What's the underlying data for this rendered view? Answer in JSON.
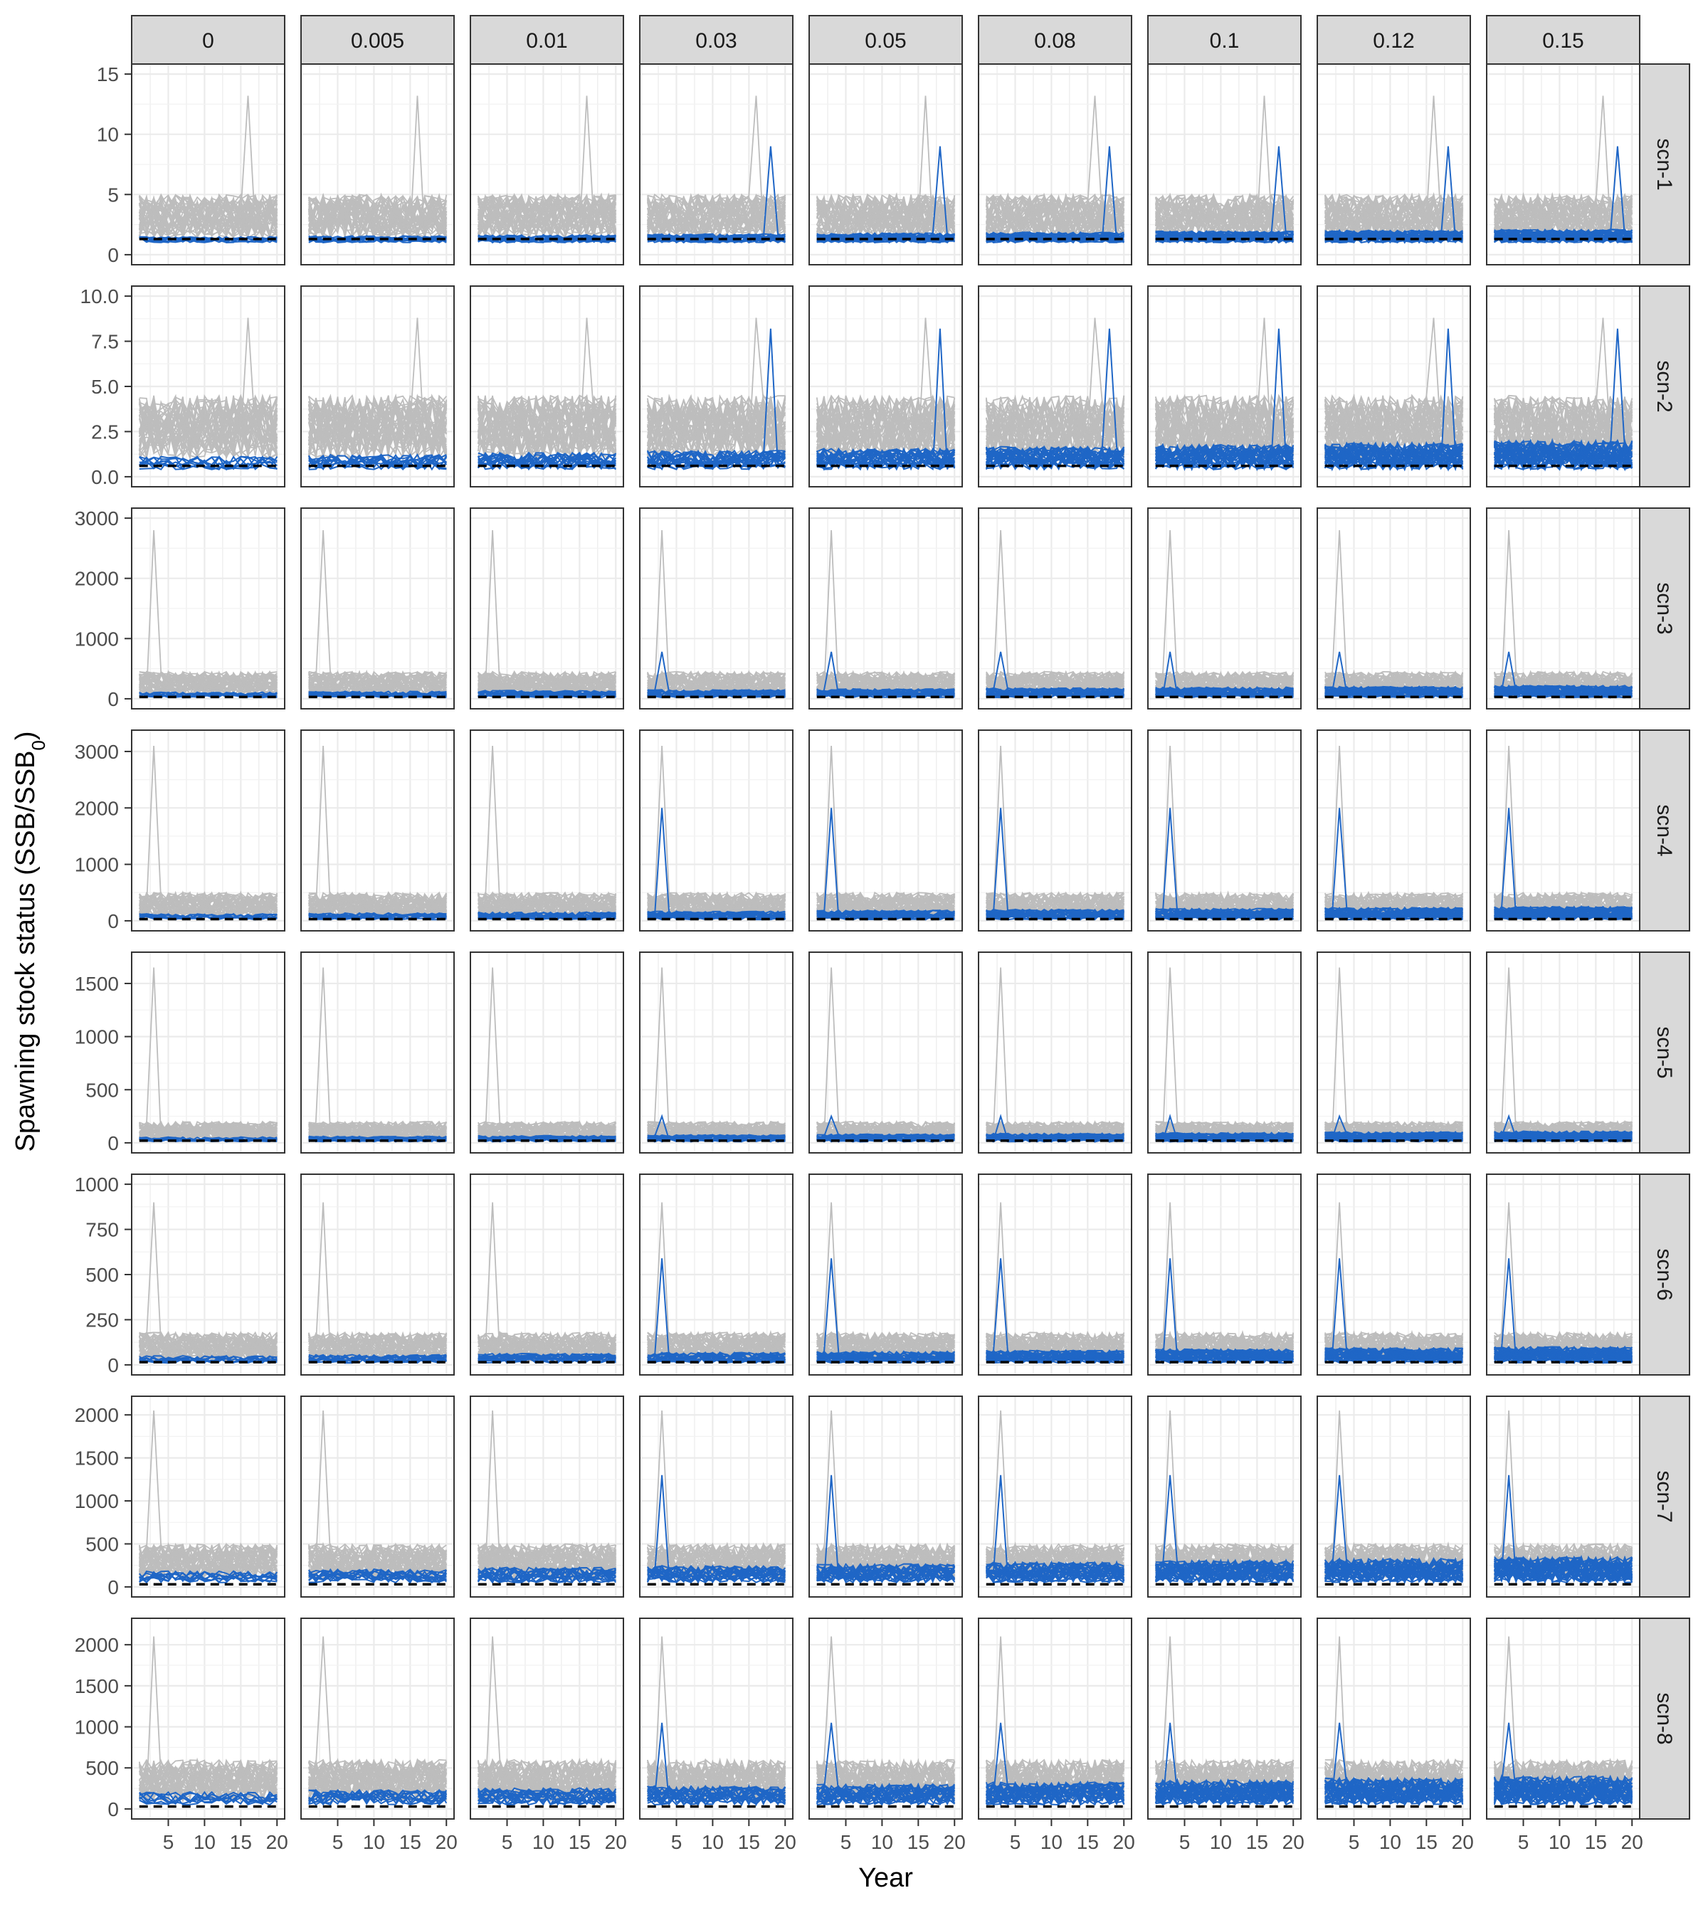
{
  "chart_data": {
    "type": "line",
    "xlabel": "Year",
    "ylabel": "Spawning stock status (SSB/SSB",
    "ylabel_subscript": "0",
    "ylabel_suffix": ")",
    "x_range": [
      1,
      20
    ],
    "x_ticks": [
      5,
      10,
      15,
      20
    ],
    "columns": [
      "0",
      "0.005",
      "0.01",
      "0.03",
      "0.05",
      "0.08",
      "0.1",
      "0.12",
      "0.15"
    ],
    "rows": [
      {
        "name": "scn-1",
        "y_ticks": [
          0,
          5,
          10,
          15
        ],
        "y_tick_labels": [
          "0",
          "5",
          "10",
          "15"
        ],
        "y_max": 15,
        "dash": 1.3,
        "gray": [
          1.4,
          5.0
        ],
        "blue_low": [
          1.0,
          2.1
        ],
        "blue_peak": 9
      },
      {
        "name": "scn-2",
        "y_ticks": [
          0,
          2.5,
          5,
          7.5,
          10
        ],
        "y_tick_labels": [
          "0.0",
          "2.5",
          "5.0",
          "7.5",
          "10.0"
        ],
        "y_max": 10,
        "dash": 0.6,
        "gray": [
          1.0,
          4.5
        ],
        "blue_low": [
          0.4,
          2.0
        ],
        "blue_peak": 8.2
      },
      {
        "name": "scn-3",
        "y_ticks": [
          0,
          1000,
          2000,
          3000
        ],
        "y_tick_labels": [
          "0",
          "1000",
          "2000",
          "3000"
        ],
        "y_max": 3000,
        "dash": 30,
        "gray": [
          50,
          450
        ],
        "blue_low": [
          20,
          220
        ],
        "blue_peak": 780,
        "gray_peak": 2800
      },
      {
        "name": "scn-4",
        "y_ticks": [
          0,
          1000,
          2000,
          3000
        ],
        "y_tick_labels": [
          "0",
          "1000",
          "2000",
          "3000"
        ],
        "y_max": 3200,
        "dash": 30,
        "gray": [
          50,
          500
        ],
        "blue_low": [
          20,
          250
        ],
        "blue_peak": 2000,
        "gray_peak": 3100
      },
      {
        "name": "scn-5",
        "y_ticks": [
          0,
          500,
          1000,
          1500
        ],
        "y_tick_labels": [
          "0",
          "500",
          "1000",
          "1500"
        ],
        "y_max": 1700,
        "dash": 20,
        "gray": [
          20,
          200
        ],
        "blue_low": [
          10,
          110
        ],
        "blue_peak": 250,
        "gray_peak": 1650
      },
      {
        "name": "scn-6",
        "y_ticks": [
          0,
          250,
          500,
          750,
          1000
        ],
        "y_tick_labels": [
          "0",
          "250",
          "500",
          "750",
          "1000"
        ],
        "y_max": 1000,
        "dash": 15,
        "gray": [
          20,
          180
        ],
        "blue_low": [
          10,
          100
        ],
        "blue_peak": 590,
        "gray_peak": 900
      },
      {
        "name": "scn-7",
        "y_ticks": [
          0,
          500,
          1000,
          1500,
          2000
        ],
        "y_tick_labels": [
          "0",
          "500",
          "1000",
          "1500",
          "2000"
        ],
        "y_max": 2100,
        "dash": 30,
        "gray": [
          100,
          500
        ],
        "blue_low": [
          50,
          350
        ],
        "blue_peak": 1300,
        "gray_peak": 2050
      },
      {
        "name": "scn-8",
        "y_ticks": [
          0,
          500,
          1000,
          1500,
          2000
        ],
        "y_tick_labels": [
          "0",
          "500",
          "1000",
          "1500",
          "2000"
        ],
        "y_max": 2200,
        "dash": 30,
        "gray": [
          100,
          600
        ],
        "blue_low": [
          50,
          400
        ],
        "blue_peak": 1050,
        "gray_peak": 2100
      }
    ],
    "series": [
      {
        "color": "#bdbdbd",
        "style": "solid"
      },
      {
        "color": "#1f66c6",
        "style": "solid"
      },
      {
        "color": "#000000",
        "style": "dashed"
      }
    ],
    "grid": true,
    "legend": "none"
  }
}
